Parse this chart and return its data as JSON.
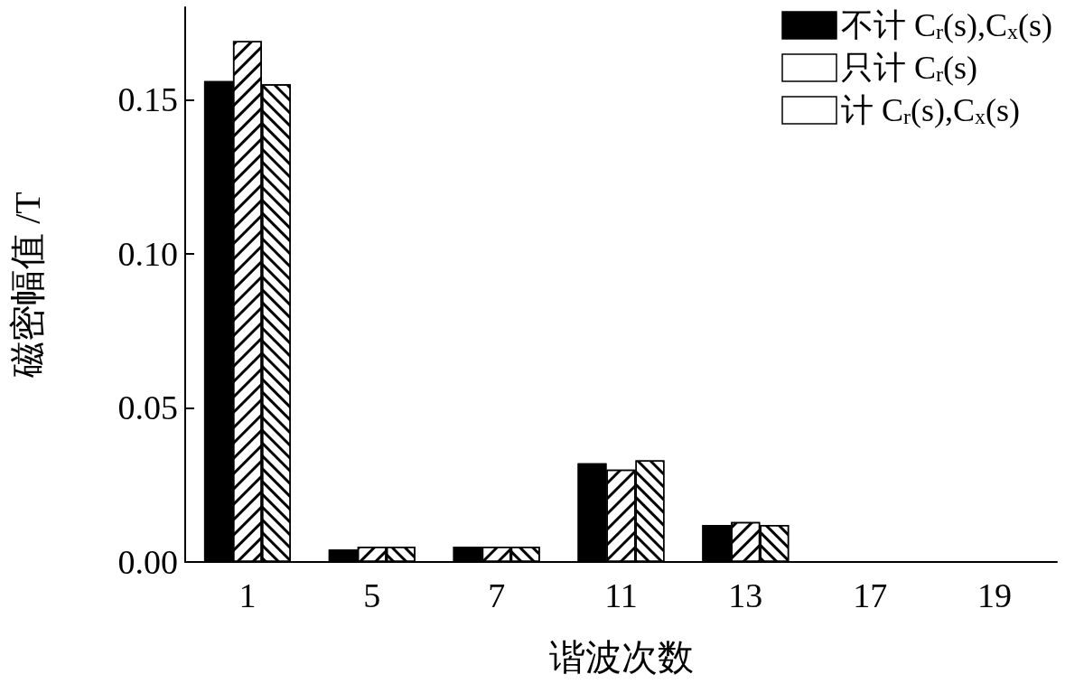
{
  "chart_data": {
    "type": "bar",
    "xlabel": "谐波次数",
    "ylabel": "磁密幅值 /T",
    "categories": [
      "1",
      "5",
      "7",
      "11",
      "13",
      "17",
      "19"
    ],
    "series": [
      {
        "name": "不计 C$_{r}$(s),C$_{x}$(s)",
        "color": "#000000",
        "values": [
          0.156,
          0.004,
          0.005,
          0.032,
          0.012,
          0,
          0
        ]
      },
      {
        "name": "只计 C$_{r}$(s)",
        "color": "#ffffff",
        "values": [
          0.169,
          0.005,
          0.005,
          0.03,
          0.013,
          0,
          0
        ]
      },
      {
        "name": "计 C$_{r}$(s),C$_{x}$(s)",
        "color": "#ffffff",
        "values": [
          0.155,
          0.005,
          0.005,
          0.033,
          0.012,
          0,
          0
        ]
      }
    ],
    "ylim": [
      0,
      0.18
    ],
    "yticks": [
      {
        "value": 0,
        "label": "0.00"
      },
      {
        "value": 0.05,
        "label": "0.05"
      },
      {
        "value": 0.1,
        "label": "0.10"
      },
      {
        "value": 0.15,
        "label": "0.15"
      }
    ],
    "grid": false,
    "legend": "top right"
  }
}
